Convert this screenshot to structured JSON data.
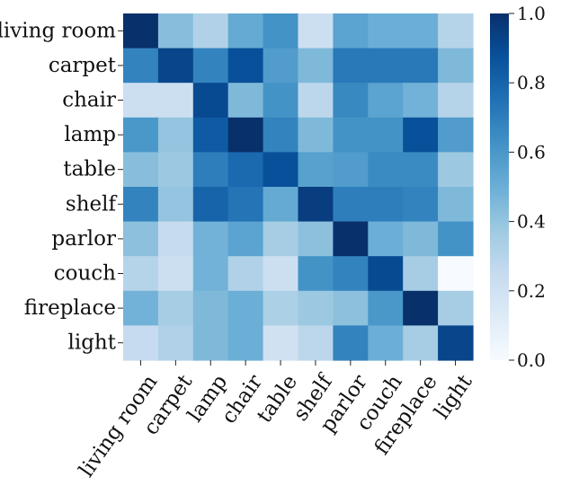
{
  "chart_data": {
    "type": "heatmap",
    "title": "",
    "xlabel": "",
    "ylabel": "",
    "y_labels": [
      "living room",
      "carpet",
      "chair",
      "lamp",
      "table",
      "shelf",
      "parlor",
      "couch",
      "fireplace",
      "light"
    ],
    "x_labels": [
      "living room",
      "carpet",
      "lamp",
      "chair",
      "table",
      "shelf",
      "parlor",
      "couch",
      "fireplace",
      "light"
    ],
    "values": [
      [
        1.0,
        0.43,
        0.32,
        0.52,
        0.62,
        0.22,
        0.55,
        0.5,
        0.5,
        0.3
      ],
      [
        0.68,
        0.92,
        0.68,
        0.88,
        0.58,
        0.45,
        0.72,
        0.72,
        0.72,
        0.45
      ],
      [
        0.22,
        0.22,
        0.9,
        0.45,
        0.62,
        0.28,
        0.66,
        0.55,
        0.48,
        0.3
      ],
      [
        0.6,
        0.4,
        0.84,
        1.0,
        0.68,
        0.45,
        0.62,
        0.62,
        0.88,
        0.58
      ],
      [
        0.43,
        0.38,
        0.7,
        0.78,
        0.88,
        0.56,
        0.58,
        0.65,
        0.65,
        0.38
      ],
      [
        0.68,
        0.4,
        0.8,
        0.74,
        0.52,
        0.95,
        0.7,
        0.7,
        0.68,
        0.45
      ],
      [
        0.42,
        0.25,
        0.48,
        0.55,
        0.35,
        0.42,
        1.0,
        0.5,
        0.45,
        0.62
      ],
      [
        0.3,
        0.22,
        0.48,
        0.32,
        0.22,
        0.62,
        0.68,
        0.9,
        0.35,
        0.0
      ],
      [
        0.48,
        0.35,
        0.45,
        0.5,
        0.33,
        0.38,
        0.42,
        0.6,
        1.0,
        0.35
      ],
      [
        0.25,
        0.32,
        0.45,
        0.5,
        0.2,
        0.28,
        0.68,
        0.5,
        0.35,
        0.92
      ]
    ],
    "colorbar": {
      "min": 0.0,
      "max": 1.0,
      "ticks": [
        "0.0",
        "0.2",
        "0.4",
        "0.6",
        "0.8",
        "1.0"
      ],
      "colormap": "Blues",
      "low_color": "#f7fbff",
      "high_color": "#08306b"
    },
    "grid": false,
    "legend": "colorbar-right"
  }
}
